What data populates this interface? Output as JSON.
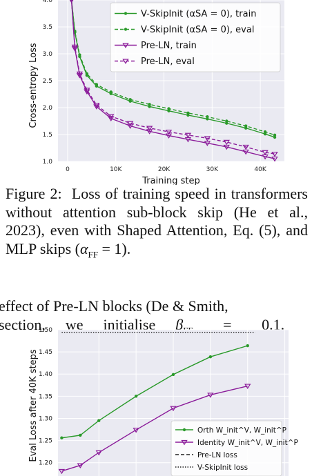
{
  "chart_data": [
    {
      "type": "line",
      "xlabel": "Training step",
      "ylabel": "Cross-entropy Loss",
      "xlim": [
        -2000,
        45000
      ],
      "ylim": [
        1.0,
        4.0
      ],
      "x_ticks": [
        0,
        10000,
        20000,
        30000,
        40000
      ],
      "x_tick_labels": [
        "0",
        "10K",
        "20K",
        "30K",
        "40K"
      ],
      "y_ticks": [
        1.0,
        1.5,
        2.0,
        2.5,
        3.0,
        3.5,
        4.0
      ],
      "y_tick_labels": [
        "1.0",
        "1.5",
        "2.0",
        "2.5",
        "3.0",
        "3.5",
        "4.0"
      ],
      "grid": true,
      "legend_position": "top-right",
      "series": [
        {
          "name": "V-SkipInit (αSA = 0), train",
          "color": "#2a9a2a",
          "style": "solid",
          "marker": "dot",
          "x": [
            800,
            1500,
            2500,
            4000,
            6000,
            9000,
            13000,
            17000,
            21000,
            25000,
            29000,
            33000,
            37000,
            41000,
            43000
          ],
          "y": [
            4.0,
            3.4,
            2.95,
            2.6,
            2.4,
            2.26,
            2.12,
            2.02,
            1.94,
            1.86,
            1.79,
            1.71,
            1.62,
            1.51,
            1.45
          ]
        },
        {
          "name": "V-SkipInit (αSA = 0), eval",
          "color": "#2a9a2a",
          "style": "dashed",
          "marker": "dot",
          "x": [
            800,
            1500,
            2500,
            4000,
            6000,
            9000,
            13000,
            17000,
            21000,
            25000,
            29000,
            33000,
            37000,
            41000,
            43000
          ],
          "y": [
            4.0,
            3.42,
            2.98,
            2.63,
            2.43,
            2.29,
            2.15,
            2.06,
            1.98,
            1.9,
            1.83,
            1.75,
            1.66,
            1.55,
            1.49
          ]
        },
        {
          "name": "Pre-LN, train",
          "color": "#8b1c9a",
          "style": "solid",
          "marker": "triangle-down",
          "x": [
            800,
            1500,
            2500,
            4000,
            6000,
            9000,
            13000,
            17000,
            21000,
            25000,
            29000,
            33000,
            37000,
            41000,
            43000
          ],
          "y": [
            4.0,
            3.1,
            2.6,
            2.3,
            2.02,
            1.8,
            1.66,
            1.56,
            1.48,
            1.41,
            1.34,
            1.27,
            1.18,
            1.09,
            1.05
          ]
        },
        {
          "name": "Pre-LN, eval",
          "color": "#8b1c9a",
          "style": "dashed",
          "marker": "triangle-down",
          "x": [
            800,
            1500,
            2500,
            4000,
            6000,
            9000,
            13000,
            17000,
            21000,
            25000,
            29000,
            33000,
            37000,
            41000,
            43000
          ],
          "y": [
            4.0,
            3.13,
            2.63,
            2.33,
            2.05,
            1.84,
            1.71,
            1.62,
            1.55,
            1.49,
            1.43,
            1.36,
            1.27,
            1.17,
            1.14
          ]
        }
      ]
    },
    {
      "type": "line",
      "ylabel": "Eval Loss after 40K steps",
      "x": [
        1,
        2,
        3,
        4,
        5,
        6,
        7
      ],
      "xlim": [
        0.9,
        7.1
      ],
      "ylim": [
        1.17,
        1.5
      ],
      "y_ticks": [
        1.2,
        1.25,
        1.3,
        1.35,
        1.4,
        1.45,
        1.5
      ],
      "y_tick_labels": [
        "1.20",
        "1.25",
        "1.30",
        "1.35",
        "1.40",
        "1.45",
        "1.50"
      ],
      "grid": true,
      "legend_position": "bottom-right",
      "series": [
        {
          "name": "Orth W_init^V, W_init^P",
          "color": "#2a9a2a",
          "style": "solid",
          "marker": "dot",
          "x": [
            1,
            1.5,
            2,
            3,
            4,
            5,
            6
          ],
          "y": [
            1.256,
            1.262,
            1.295,
            1.35,
            1.399,
            1.439,
            1.464
          ]
        },
        {
          "name": "Identity W_init^V, W_init^P",
          "color": "#8b1c9a",
          "style": "solid",
          "marker": "triangle-down",
          "x": [
            1,
            1.5,
            2,
            3,
            4,
            5,
            6
          ],
          "y": [
            1.181,
            1.194,
            1.223,
            1.274,
            1.323,
            1.353,
            1.373
          ]
        },
        {
          "name": "Pre-LN loss",
          "color": "#222222",
          "style": "dashed",
          "marker": "none",
          "x": [
            1,
            6.2
          ],
          "y": [
            1.16,
            1.16
          ]
        },
        {
          "name": "V-SkipInit loss",
          "color": "#222222",
          "style": "dotted",
          "marker": "none",
          "x": [
            1,
            6.2
          ],
          "y": [
            1.494,
            1.494
          ]
        }
      ]
    }
  ],
  "caption": "Figure 2: Loss of training speed in transformers without attention sub-block skip (He et al., 2023), even with Shaped Attention, Eq. (5), and MLP skips (αFF = 1).",
  "body_line1": "effect of Pre-LN blocks (De & Smith,",
  "body_line2": "section, we initialise βFF = 0.1."
}
